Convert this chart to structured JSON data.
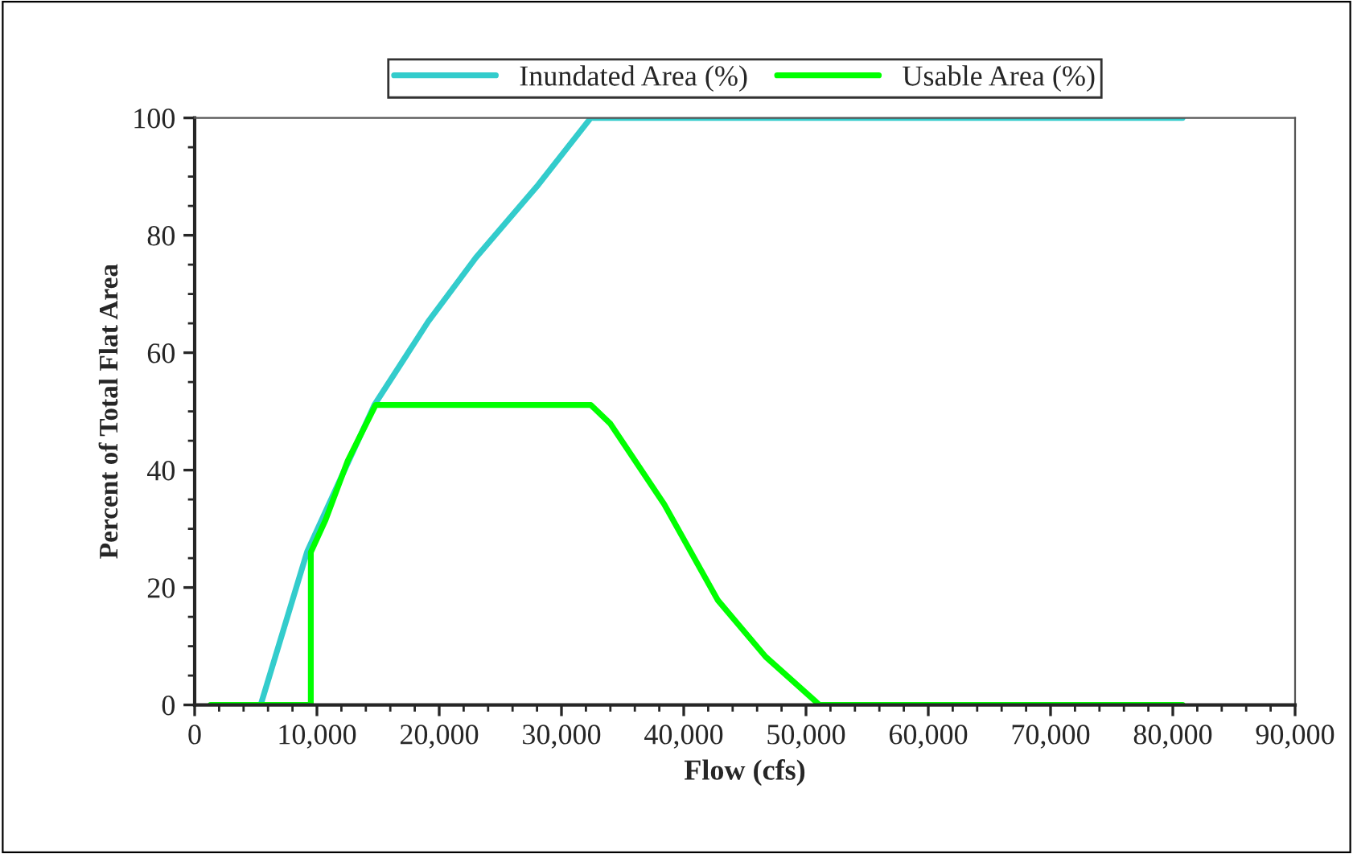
{
  "chart_data": {
    "type": "line",
    "xlabel": "Flow (cfs)",
    "ylabel": "Percent of Total Flat Area",
    "series": [
      {
        "name": "Inundated Area (%)",
        "color": "#33cccc",
        "x": [
          5400,
          9200,
          14700,
          19100,
          23000,
          28100,
          32400,
          80800
        ],
        "values": [
          0,
          26.1,
          51.1,
          65.3,
          76.2,
          88.6,
          100,
          100
        ]
      },
      {
        "name": "Usable Area (%)",
        "color": "#00ff00",
        "x": [
          1300,
          9500,
          9500,
          10700,
          12500,
          14800,
          32400,
          34000,
          38400,
          42800,
          46700,
          51100,
          80800
        ],
        "values": [
          0,
          0,
          26,
          31.5,
          41.5,
          51.1,
          51.1,
          47.9,
          34.2,
          17.8,
          8.2,
          0,
          0
        ]
      }
    ],
    "xlim": [
      0,
      90000
    ],
    "xticks": [
      {
        "value": 0,
        "label": "0"
      },
      {
        "value": 10000,
        "label": "10,000"
      },
      {
        "value": 20000,
        "label": "20,000"
      },
      {
        "value": 30000,
        "label": "30,000"
      },
      {
        "value": 40000,
        "label": "40,000"
      },
      {
        "value": 50000,
        "label": "50,000"
      },
      {
        "value": 60000,
        "label": "60,000"
      },
      {
        "value": 70000,
        "label": "70,000"
      },
      {
        "value": 80000,
        "label": "80,000"
      },
      {
        "value": 90000,
        "label": "90,000"
      }
    ],
    "ylim": [
      0,
      100
    ],
    "yticks": [
      0,
      20,
      40,
      60,
      80,
      100
    ],
    "grid": false,
    "legend": "top",
    "marker": "none",
    "line_style": "solid"
  }
}
